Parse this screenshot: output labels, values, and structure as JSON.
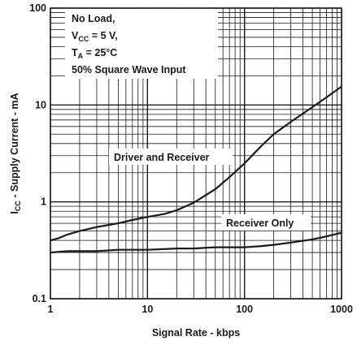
{
  "chart_data": {
    "type": "line",
    "title": "",
    "xlabel": "Signal Rate - kbps",
    "ylabel_main": "I",
    "ylabel_sub": "CC",
    "ylabel_rest": " - Supply Current - mA",
    "x_scale": "log",
    "y_scale": "log",
    "xlim": [
      1,
      1000
    ],
    "ylim": [
      0.1,
      100
    ],
    "x_ticks": [
      {
        "value": 1,
        "label": "1"
      },
      {
        "value": 10,
        "label": "10"
      },
      {
        "value": 100,
        "label": "100"
      },
      {
        "value": 1000,
        "label": "1000"
      }
    ],
    "y_ticks": [
      {
        "value": 0.1,
        "label": "0.1"
      },
      {
        "value": 1,
        "label": "1"
      },
      {
        "value": 10,
        "label": "10"
      },
      {
        "value": 100,
        "label": "100"
      }
    ],
    "grid": true,
    "conditions": {
      "line1": "No Load,",
      "line2_main": "V",
      "line2_sub": "CC",
      "line2_rest": " = 5 V,",
      "line3_main": "T",
      "line3_sub": "A",
      "line3_rest": " = 25°C",
      "line4": "50% Square Wave Input"
    },
    "series": [
      {
        "name": "Driver and Receiver",
        "x": [
          1,
          1.2,
          1.5,
          2,
          3,
          5,
          7,
          10,
          15,
          20,
          30,
          50,
          70,
          100,
          150,
          200,
          300,
          500,
          700,
          1000
        ],
        "y": [
          0.4,
          0.42,
          0.46,
          0.5,
          0.55,
          0.6,
          0.65,
          0.7,
          0.75,
          0.82,
          0.98,
          1.35,
          1.8,
          2.5,
          3.8,
          5.0,
          6.7,
          9.5,
          12.0,
          15.5
        ]
      },
      {
        "name": "Receiver Only",
        "x": [
          1,
          1.5,
          2,
          3,
          5,
          10,
          20,
          30,
          50,
          70,
          100,
          150,
          200,
          300,
          500,
          700,
          1000
        ],
        "y": [
          0.3,
          0.31,
          0.31,
          0.31,
          0.32,
          0.32,
          0.33,
          0.33,
          0.34,
          0.34,
          0.34,
          0.35,
          0.36,
          0.38,
          0.41,
          0.44,
          0.48
        ]
      }
    ],
    "annotations": [
      {
        "text": "Driver and Receiver",
        "series": 0
      },
      {
        "text": "Receiver Only",
        "series": 1
      }
    ],
    "colors": {
      "line": "#1a1a1a",
      "grid": "#1a1a1a",
      "background": "#ffffff"
    }
  }
}
